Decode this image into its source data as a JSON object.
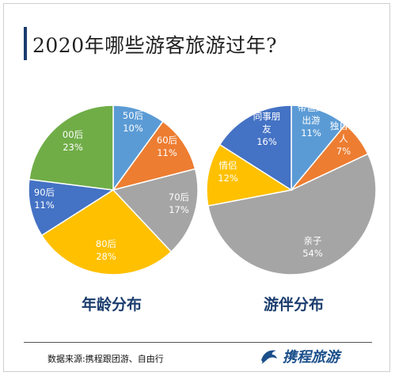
{
  "title": "2020年哪些游客旅游过年?",
  "chart_data": [
    {
      "type": "pie",
      "title": "年龄分布",
      "slices": [
        {
          "label": "50后",
          "value": 10,
          "pct": "10%",
          "color": "#5b9bd5"
        },
        {
          "label": "60后",
          "value": 11,
          "pct": "11%",
          "color": "#ed7d31"
        },
        {
          "label": "70后",
          "value": 17,
          "pct": "17%",
          "color": "#a5a5a5"
        },
        {
          "label": "80后",
          "value": 28,
          "pct": "28%",
          "color": "#ffc000"
        },
        {
          "label": "90后",
          "value": 11,
          "pct": "11%",
          "color": "#4472c4"
        },
        {
          "label": "00后",
          "value": 23,
          "pct": "23%",
          "color": "#70ad47"
        }
      ]
    },
    {
      "type": "pie",
      "title": "游伴分布",
      "slices": [
        {
          "label": "带爸妈出游",
          "value": 11,
          "pct": "11%",
          "color": "#5b9bd5"
        },
        {
          "label": "独自一人",
          "value": 7,
          "pct": "7%",
          "color": "#ed7d31"
        },
        {
          "label": "亲子",
          "value": 54,
          "pct": "54%",
          "color": "#a5a5a5"
        },
        {
          "label": "情侣",
          "value": 12,
          "pct": "12%",
          "color": "#ffc000"
        },
        {
          "label": "同事朋友",
          "value": 16,
          "pct": "16%",
          "color": "#4472c4"
        }
      ]
    }
  ],
  "footer": {
    "source": "数据来源:携程跟团游、自由行",
    "brand": "携程旅游",
    "brand_icon": "dolphin-icon"
  }
}
